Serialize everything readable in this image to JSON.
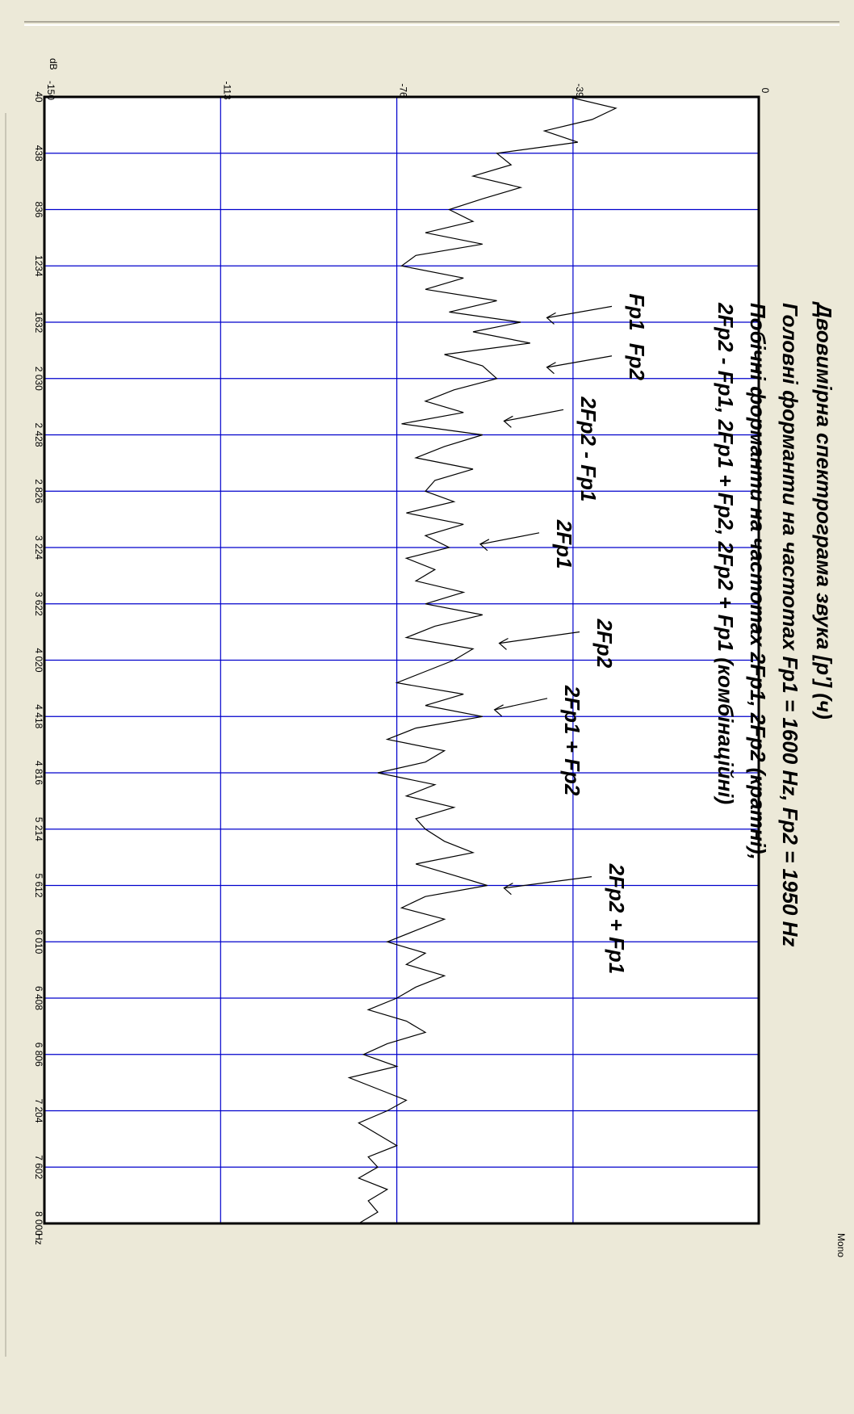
{
  "window": {
    "channel_label": "Mono",
    "freq_unit": "Hz",
    "level_unit": "dB"
  },
  "chart_data": {
    "type": "line",
    "title_lines": [
      "Двовимірна спектрограма звука [р'] (ч)",
      "Головні форманти на частотах Fp1 = 1600 Hz, Fp2 = 1950 Hz",
      "Побічні форманти на частотах 2Fp1, 2Fp2 (кратні),",
      "2Fp2 - Fp1, 2Fp1 + Fp2, 2Fp2 + Fp1 (комбінаційні)"
    ],
    "xlabel": "Hz",
    "ylabel": "dB",
    "xlim": [
      40,
      8000
    ],
    "ylim": [
      -150,
      0
    ],
    "x_ticks": [
      40,
      438,
      836,
      1234,
      1632,
      2030,
      2428,
      2826,
      3224,
      3622,
      4020,
      4418,
      4816,
      5214,
      5612,
      6010,
      6408,
      6806,
      7204,
      7602,
      8000
    ],
    "x_tick_labels": [
      "40",
      "438",
      "836",
      "1234",
      "1632",
      "2 030",
      "2 428",
      "2 826",
      "3 224",
      "3 622",
      "4 020",
      "4 418",
      "4 816",
      "5 214",
      "5 612",
      "6 010",
      "6 408",
      "6 806",
      "7 204",
      "7 602",
      "8 000"
    ],
    "y_ticks": [
      -150,
      -113,
      -76,
      -39,
      0
    ],
    "y_tick_labels": [
      "-150",
      "-113",
      "-76",
      "-39",
      "0"
    ],
    "grid": true,
    "orientation": "rotated-90-clockwise",
    "annotations": [
      {
        "label": "Fp1",
        "freq": 1600,
        "db": -45
      },
      {
        "label": "Fp2",
        "freq": 1950,
        "db": -45
      },
      {
        "label": "2Fp2 - Fp1",
        "freq": 2330,
        "db": -54
      },
      {
        "label": "2Fp1",
        "freq": 3200,
        "db": -59
      },
      {
        "label": "2Fp2",
        "freq": 3900,
        "db": -55
      },
      {
        "label": "2Fp1 + Fp2",
        "freq": 4370,
        "db": -56
      },
      {
        "label": "2Fp2 + Fp1",
        "freq": 5630,
        "db": -54
      }
    ],
    "series": [
      {
        "type": "line",
        "color": "#000000",
        "x": [
          40,
          120,
          200,
          280,
          360,
          438,
          520,
          600,
          680,
          760,
          836,
          920,
          1000,
          1080,
          1160,
          1234,
          1320,
          1400,
          1480,
          1560,
          1632,
          1700,
          1780,
          1860,
          1940,
          2030,
          2110,
          2190,
          2270,
          2350,
          2428,
          2510,
          2590,
          2670,
          2750,
          2826,
          2900,
          2980,
          3060,
          3140,
          3224,
          3300,
          3380,
          3460,
          3540,
          3622,
          3700,
          3780,
          3860,
          3940,
          4020,
          4100,
          4180,
          4260,
          4340,
          4418,
          4500,
          4580,
          4660,
          4740,
          4816,
          4900,
          4980,
          5060,
          5140,
          5214,
          5300,
          5380,
          5460,
          5540,
          5612,
          5690,
          5770,
          5850,
          5930,
          6010,
          6090,
          6170,
          6250,
          6330,
          6408,
          6490,
          6570,
          6650,
          6730,
          6806,
          6890,
          6970,
          7050,
          7130,
          7204,
          7290,
          7370,
          7450,
          7530,
          7602,
          7680,
          7760,
          7840,
          7920,
          8000
        ],
        "y": [
          -40,
          -30,
          -35,
          -45,
          -38,
          -55,
          -52,
          -60,
          -50,
          -58,
          -65,
          -60,
          -70,
          -58,
          -72,
          -75,
          -62,
          -70,
          -55,
          -65,
          -50,
          -60,
          -48,
          -66,
          -58,
          -55,
          -64,
          -70,
          -62,
          -75,
          -58,
          -66,
          -72,
          -60,
          -68,
          -70,
          -64,
          -74,
          -62,
          -70,
          -65,
          -74,
          -68,
          -72,
          -62,
          -70,
          -58,
          -68,
          -74,
          -60,
          -64,
          -70,
          -76,
          -62,
          -70,
          -58,
          -72,
          -78,
          -66,
          -70,
          -80,
          -68,
          -74,
          -64,
          -72,
          -70,
          -66,
          -60,
          -72,
          -64,
          -57,
          -70,
          -75,
          -66,
          -72,
          -78,
          -70,
          -74,
          -66,
          -72,
          -76,
          -82,
          -74,
          -70,
          -78,
          -83,
          -76,
          -86,
          -80,
          -74,
          -78,
          -84,
          -80,
          -76,
          -82,
          -80,
          -84,
          -78,
          -82,
          -80,
          -84
        ]
      }
    ]
  }
}
